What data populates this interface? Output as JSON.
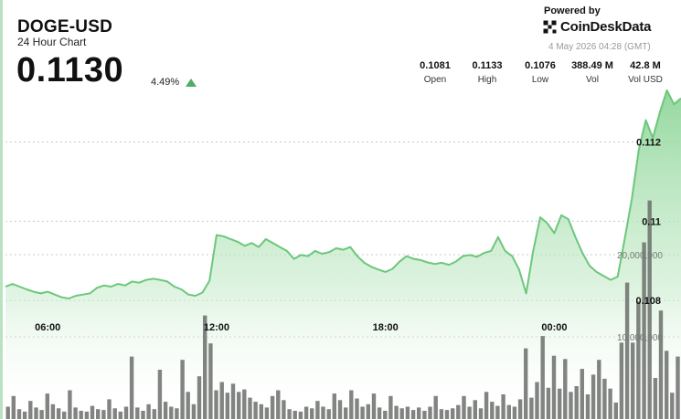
{
  "header": {
    "ticker": "DOGE-USD",
    "subtitle": "24 Hour Chart",
    "price": "0.1130",
    "change": "4.49%",
    "powered_by": "Powered by",
    "brand": "CoinDeskData",
    "timestamp": "4 May 2026 04:28 (GMT)"
  },
  "stats": [
    {
      "value": "0.1081",
      "label": "Open"
    },
    {
      "value": "0.1133",
      "label": "High"
    },
    {
      "value": "0.1076",
      "label": "Low"
    },
    {
      "value": "388.49 M",
      "label": "Vol"
    },
    {
      "value": "42.8 M",
      "label": "Vol USD"
    }
  ],
  "colors": {
    "line": "#6cc77b",
    "area_top": "#8fd69a",
    "volume": "#6b6f6b",
    "up": "#4caf63"
  },
  "chart_data": {
    "type": "area",
    "title": "",
    "x_tick_labels": [
      "06:00",
      "12:00",
      "18:00",
      "00:00"
    ],
    "x_tick_hours": [
      6,
      12,
      18,
      24
    ],
    "x_range_hours": [
      4.5,
      28.5
    ],
    "price_ylim": [
      0.1066,
      0.1136
    ],
    "price_ticks": [
      0.108,
      0.11,
      0.112
    ],
    "price_tick_labels": [
      "0.108",
      "0.11",
      "0.112"
    ],
    "volume_ticks": [
      20000000,
      10000000
    ],
    "volume_tick_labels": [
      "20,000,000",
      "10,000,000"
    ],
    "volume_ylim": [
      0,
      31000000
    ],
    "series": [
      {
        "type": "line",
        "points": [
          [
            4.5,
            0.10835
          ],
          [
            4.75,
            0.10842
          ],
          [
            5.0,
            0.10835
          ],
          [
            5.25,
            0.10828
          ],
          [
            5.5,
            0.10822
          ],
          [
            5.75,
            0.10818
          ],
          [
            6.0,
            0.10822
          ],
          [
            6.25,
            0.10815
          ],
          [
            6.5,
            0.10808
          ],
          [
            6.75,
            0.10805
          ],
          [
            7.0,
            0.10812
          ],
          [
            7.25,
            0.10815
          ],
          [
            7.5,
            0.10818
          ],
          [
            7.75,
            0.10832
          ],
          [
            8.0,
            0.10838
          ],
          [
            8.25,
            0.10835
          ],
          [
            8.5,
            0.10842
          ],
          [
            8.75,
            0.10838
          ],
          [
            9.0,
            0.10848
          ],
          [
            9.25,
            0.10845
          ],
          [
            9.5,
            0.10852
          ],
          [
            9.75,
            0.10855
          ],
          [
            10.0,
            0.10852
          ],
          [
            10.25,
            0.10848
          ],
          [
            10.5,
            0.10835
          ],
          [
            10.75,
            0.10828
          ],
          [
            11.0,
            0.10815
          ],
          [
            11.25,
            0.10812
          ],
          [
            11.5,
            0.1082
          ],
          [
            11.75,
            0.1085
          ],
          [
            12.0,
            0.10965
          ],
          [
            12.25,
            0.10962
          ],
          [
            12.5,
            0.10955
          ],
          [
            12.75,
            0.10948
          ],
          [
            13.0,
            0.10938
          ],
          [
            13.25,
            0.10945
          ],
          [
            13.5,
            0.10935
          ],
          [
            13.75,
            0.10955
          ],
          [
            14.0,
            0.10945
          ],
          [
            14.25,
            0.10935
          ],
          [
            14.5,
            0.10925
          ],
          [
            14.75,
            0.10905
          ],
          [
            15.0,
            0.10915
          ],
          [
            15.25,
            0.10912
          ],
          [
            15.5,
            0.10925
          ],
          [
            15.75,
            0.10918
          ],
          [
            16.0,
            0.10922
          ],
          [
            16.25,
            0.10932
          ],
          [
            16.5,
            0.10928
          ],
          [
            16.75,
            0.10935
          ],
          [
            17.0,
            0.10912
          ],
          [
            17.25,
            0.10895
          ],
          [
            17.5,
            0.10885
          ],
          [
            17.75,
            0.10878
          ],
          [
            18.0,
            0.10872
          ],
          [
            18.25,
            0.1088
          ],
          [
            18.5,
            0.10898
          ],
          [
            18.75,
            0.10912
          ],
          [
            19.0,
            0.10905
          ],
          [
            19.25,
            0.10902
          ],
          [
            19.5,
            0.10896
          ],
          [
            19.75,
            0.10892
          ],
          [
            20.0,
            0.10895
          ],
          [
            20.25,
            0.1089
          ],
          [
            20.5,
            0.10898
          ],
          [
            20.75,
            0.10912
          ],
          [
            21.0,
            0.10915
          ],
          [
            21.25,
            0.1091
          ],
          [
            21.5,
            0.1092
          ],
          [
            21.75,
            0.10925
          ],
          [
            22.0,
            0.1096
          ],
          [
            22.25,
            0.10925
          ],
          [
            22.5,
            0.10912
          ],
          [
            22.75,
            0.10878
          ],
          [
            23.0,
            0.10818
          ],
          [
            23.25,
            0.10925
          ],
          [
            23.5,
            0.1101
          ],
          [
            23.75,
            0.10995
          ],
          [
            24.0,
            0.1097
          ],
          [
            24.25,
            0.11015
          ],
          [
            24.5,
            0.11005
          ],
          [
            24.75,
            0.1096
          ],
          [
            25.0,
            0.1092
          ],
          [
            25.25,
            0.10888
          ],
          [
            25.5,
            0.10872
          ],
          [
            25.75,
            0.10862
          ],
          [
            26.0,
            0.10852
          ],
          [
            26.25,
            0.1086
          ],
          [
            26.5,
            0.10955
          ],
          [
            26.75,
            0.11055
          ],
          [
            27.0,
            0.1118
          ],
          [
            27.25,
            0.11255
          ],
          [
            27.5,
            0.1121
          ],
          [
            27.75,
            0.11275
          ],
          [
            28.0,
            0.1133
          ],
          [
            28.25,
            0.11295
          ],
          [
            28.5,
            0.1131
          ]
        ]
      },
      {
        "type": "bar",
        "name": "",
        "width_hours": 0.17,
        "points": [
          [
            4.6,
            1500000
          ],
          [
            4.8,
            2800000
          ],
          [
            5.0,
            1200000
          ],
          [
            5.2,
            900000
          ],
          [
            5.4,
            2200000
          ],
          [
            5.6,
            1400000
          ],
          [
            5.8,
            1100000
          ],
          [
            6.0,
            3100000
          ],
          [
            6.2,
            1800000
          ],
          [
            6.4,
            1300000
          ],
          [
            6.6,
            900000
          ],
          [
            6.8,
            3500000
          ],
          [
            7.0,
            1400000
          ],
          [
            7.2,
            1000000
          ],
          [
            7.4,
            900000
          ],
          [
            7.6,
            1600000
          ],
          [
            7.8,
            1200000
          ],
          [
            8.0,
            1100000
          ],
          [
            8.2,
            2400000
          ],
          [
            8.4,
            1300000
          ],
          [
            8.6,
            900000
          ],
          [
            8.8,
            1500000
          ],
          [
            9.0,
            7600000
          ],
          [
            9.2,
            1400000
          ],
          [
            9.4,
            1000000
          ],
          [
            9.6,
            1800000
          ],
          [
            9.8,
            1200000
          ],
          [
            10.0,
            6000000
          ],
          [
            10.2,
            2100000
          ],
          [
            10.4,
            1500000
          ],
          [
            10.6,
            1300000
          ],
          [
            10.8,
            7200000
          ],
          [
            11.0,
            3300000
          ],
          [
            11.2,
            1800000
          ],
          [
            11.4,
            5200000
          ],
          [
            11.6,
            12600000
          ],
          [
            11.8,
            9200000
          ],
          [
            12.0,
            3500000
          ],
          [
            12.2,
            4500000
          ],
          [
            12.4,
            3200000
          ],
          [
            12.6,
            4300000
          ],
          [
            12.8,
            3300000
          ],
          [
            13.0,
            3600000
          ],
          [
            13.2,
            2600000
          ],
          [
            13.4,
            2100000
          ],
          [
            13.6,
            1800000
          ],
          [
            13.8,
            1400000
          ],
          [
            14.0,
            2800000
          ],
          [
            14.2,
            3500000
          ],
          [
            14.4,
            2300000
          ],
          [
            14.6,
            1200000
          ],
          [
            14.8,
            1000000
          ],
          [
            15.0,
            900000
          ],
          [
            15.2,
            1500000
          ],
          [
            15.4,
            1300000
          ],
          [
            15.6,
            2200000
          ],
          [
            15.8,
            1500000
          ],
          [
            16.0,
            1200000
          ],
          [
            16.2,
            3100000
          ],
          [
            16.4,
            2300000
          ],
          [
            16.6,
            1400000
          ],
          [
            16.8,
            3500000
          ],
          [
            17.0,
            2500000
          ],
          [
            17.2,
            1500000
          ],
          [
            17.4,
            1800000
          ],
          [
            17.6,
            3100000
          ],
          [
            17.8,
            1400000
          ],
          [
            18.0,
            1000000
          ],
          [
            18.2,
            2800000
          ],
          [
            18.4,
            1600000
          ],
          [
            18.6,
            1300000
          ],
          [
            18.8,
            1500000
          ],
          [
            19.0,
            1100000
          ],
          [
            19.2,
            1400000
          ],
          [
            19.4,
            1000000
          ],
          [
            19.6,
            1500000
          ],
          [
            19.8,
            2800000
          ],
          [
            20.0,
            1200000
          ],
          [
            20.2,
            1100000
          ],
          [
            20.4,
            1300000
          ],
          [
            20.6,
            1700000
          ],
          [
            20.8,
            2800000
          ],
          [
            21.0,
            1500000
          ],
          [
            21.2,
            2300000
          ],
          [
            21.4,
            1300000
          ],
          [
            21.6,
            3300000
          ],
          [
            21.8,
            2100000
          ],
          [
            22.0,
            1600000
          ],
          [
            22.2,
            3000000
          ],
          [
            22.4,
            1700000
          ],
          [
            22.6,
            1500000
          ],
          [
            22.8,
            2400000
          ],
          [
            23.0,
            8600000
          ],
          [
            23.2,
            2600000
          ],
          [
            23.4,
            4500000
          ],
          [
            23.6,
            10100000
          ],
          [
            23.8,
            3800000
          ],
          [
            24.0,
            7700000
          ],
          [
            24.2,
            3700000
          ],
          [
            24.4,
            7300000
          ],
          [
            24.6,
            3300000
          ],
          [
            24.8,
            4000000
          ],
          [
            25.0,
            6100000
          ],
          [
            25.2,
            3000000
          ],
          [
            25.4,
            5400000
          ],
          [
            25.6,
            7200000
          ],
          [
            25.8,
            4900000
          ],
          [
            26.0,
            3700000
          ],
          [
            26.2,
            2000000
          ],
          [
            26.4,
            9300000
          ],
          [
            26.6,
            16600000
          ],
          [
            26.8,
            9300000
          ],
          [
            27.0,
            14300000
          ],
          [
            27.2,
            21500000
          ],
          [
            27.4,
            26600000
          ],
          [
            27.6,
            5000000
          ],
          [
            27.8,
            13200000
          ],
          [
            28.0,
            8300000
          ],
          [
            28.2,
            3200000
          ],
          [
            28.4,
            7600000
          ]
        ]
      }
    ],
    "grid": true,
    "legend": "none"
  }
}
